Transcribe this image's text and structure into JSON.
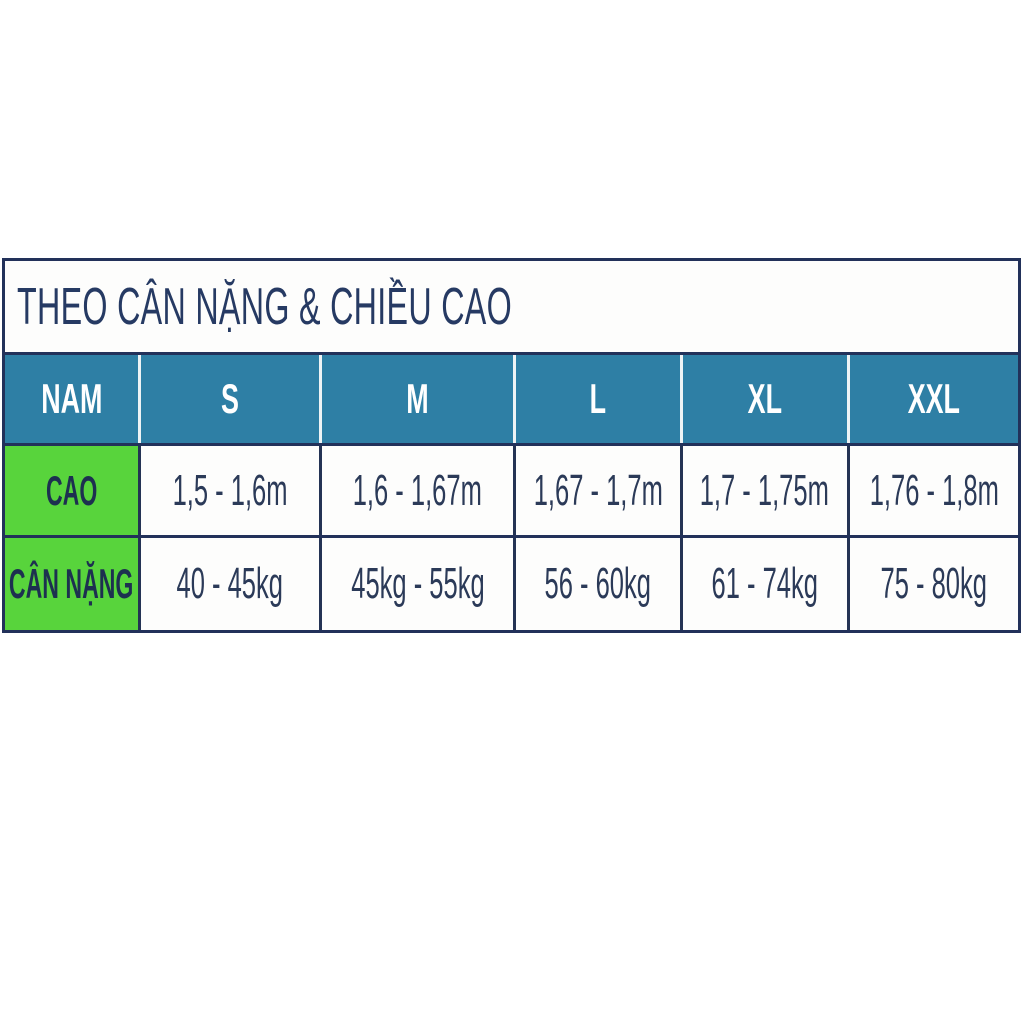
{
  "chart_data": {
    "type": "table",
    "title": "THEO CÂN NẶNG & CHIỀU CAO",
    "columns": [
      "NAM",
      "S",
      "M",
      "L",
      "XL",
      "XXL"
    ],
    "rows": [
      {
        "label": "CAO",
        "values": [
          "1,5 - 1,6m",
          "1,6 - 1,67m",
          "1,67 - 1,7m",
          "1,7 - 1,75m",
          "1,76 - 1,8m"
        ]
      },
      {
        "label": "CÂN NẶNG",
        "values": [
          "40 - 45kg",
          "45kg - 55kg",
          "56 - 60kg",
          "61 - 74kg",
          "75 - 80kg"
        ]
      }
    ],
    "layout_hints": {
      "header_position": "top-row",
      "label_column_position": "left",
      "grid": "on"
    }
  },
  "colors": {
    "header_bg": "#2e7fa5",
    "header_text": "#ffffff",
    "label_bg": "#58d43c",
    "border_navy": "#22315a",
    "title_text": "#263a63",
    "cell_text": "#2b3a58",
    "page_bg": "#ffffff"
  }
}
